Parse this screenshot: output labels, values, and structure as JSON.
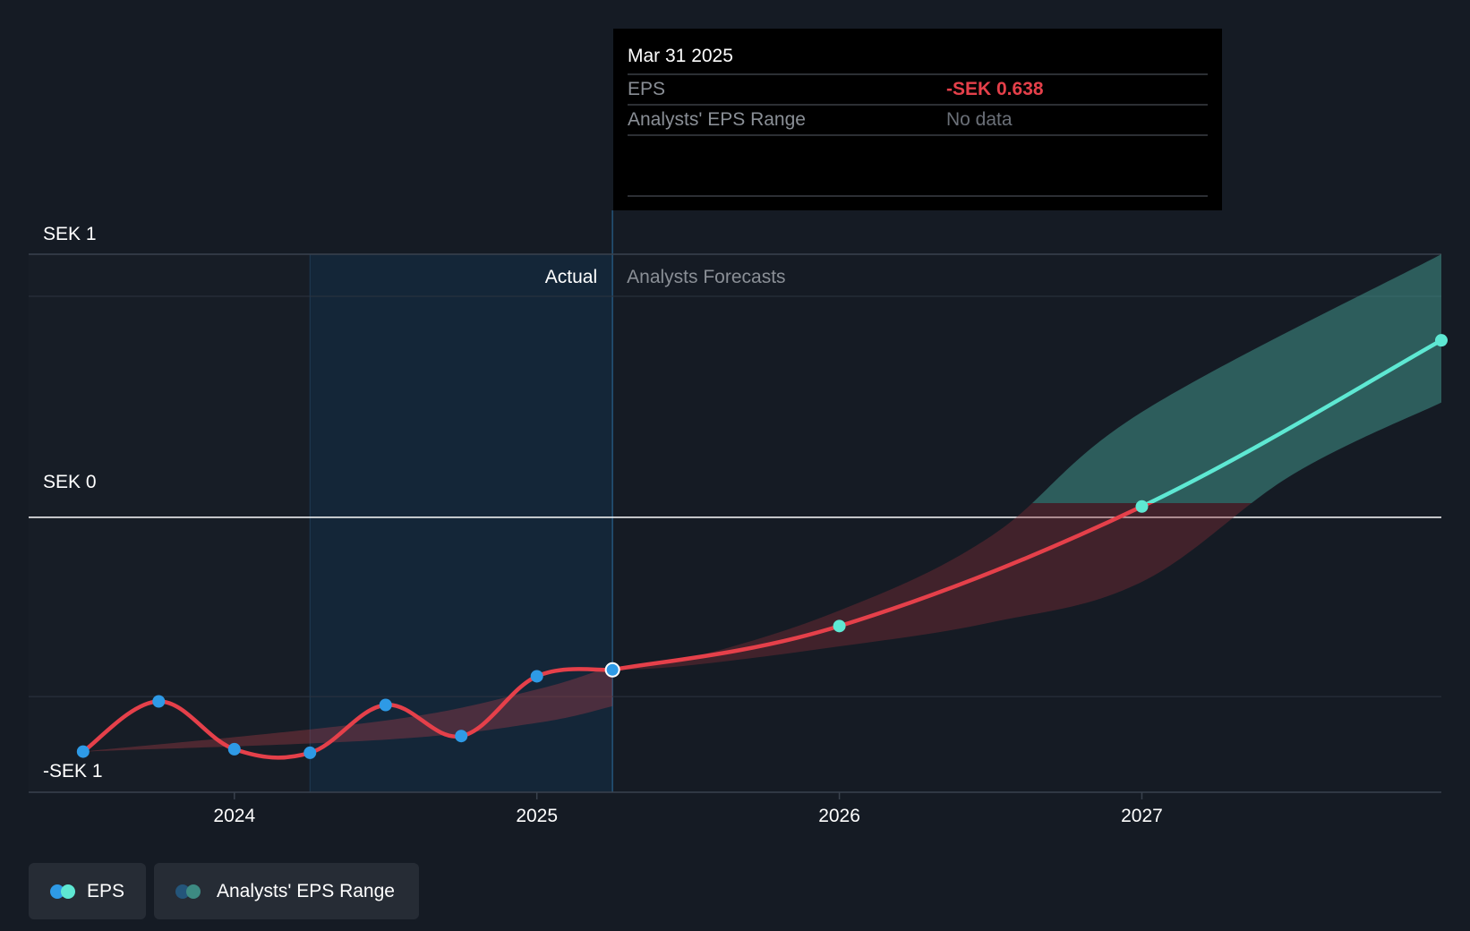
{
  "chart_data": {
    "type": "line",
    "currency_unit": "SEK",
    "y_ticks": [
      {
        "value": 1,
        "label": "SEK 1"
      },
      {
        "value": 0,
        "label": "SEK 0"
      },
      {
        "value": -1,
        "label": "-SEK 1"
      }
    ],
    "x_ticks": [
      {
        "value": 2024.0,
        "label": "2024"
      },
      {
        "value": 2025.0,
        "label": "2025"
      },
      {
        "value": 2026.0,
        "label": "2026"
      },
      {
        "value": 2027.0,
        "label": "2027"
      }
    ],
    "xlim": [
      2023.32,
      2027.99
    ],
    "ylim": [
      -1.15,
      1.1
    ],
    "section_labels": {
      "actual": "Actual",
      "forecast": "Analysts Forecasts"
    },
    "actual_highlight_start": 2024.25,
    "forecast_start": 2025.25,
    "series": [
      {
        "name": "EPS",
        "kind": "actual",
        "color": "#e5404a",
        "marker_color": "#2e9ae6",
        "points": [
          {
            "x": 2023.5,
            "y": -0.98
          },
          {
            "x": 2023.75,
            "y": -0.77
          },
          {
            "x": 2024.0,
            "y": -0.97
          },
          {
            "x": 2024.25,
            "y": -0.985
          },
          {
            "x": 2024.5,
            "y": -0.785
          },
          {
            "x": 2024.75,
            "y": -0.915
          },
          {
            "x": 2025.0,
            "y": -0.665
          },
          {
            "x": 2025.25,
            "y": -0.638
          }
        ]
      },
      {
        "name": "EPS",
        "kind": "forecast",
        "color_negative": "#e5404a",
        "color_positive": "#5ee8d3",
        "points": [
          {
            "x": 2025.25,
            "y": -0.638
          },
          {
            "x": 2026.0,
            "y": -0.455
          },
          {
            "x": 2027.0,
            "y": 0.045
          },
          {
            "x": 2027.99,
            "y": 0.74
          }
        ]
      }
    ],
    "ranges": [
      {
        "name": "Analysts' EPS Range",
        "kind": "historic",
        "color": "#c0404a",
        "upper": [
          {
            "x": 2023.5,
            "y": -0.98
          },
          {
            "x": 2024.5,
            "y": -0.85
          },
          {
            "x": 2025.0,
            "y": -0.72
          },
          {
            "x": 2025.25,
            "y": -0.62
          }
        ],
        "lower": [
          {
            "x": 2023.5,
            "y": -0.98
          },
          {
            "x": 2024.5,
            "y": -0.93
          },
          {
            "x": 2025.0,
            "y": -0.86
          },
          {
            "x": 2025.25,
            "y": -0.79
          }
        ]
      },
      {
        "name": "Analysts' EPS Range",
        "kind": "forecast",
        "color_negative": "#8a3038",
        "color_positive": "#3d8a82",
        "upper": [
          {
            "x": 2025.25,
            "y": -0.63
          },
          {
            "x": 2025.5,
            "y": -0.59
          },
          {
            "x": 2026.0,
            "y": -0.39
          },
          {
            "x": 2026.5,
            "y": -0.08
          },
          {
            "x": 2027.0,
            "y": 0.44
          },
          {
            "x": 2027.99,
            "y": 1.1
          }
        ],
        "lower": [
          {
            "x": 2025.25,
            "y": -0.64
          },
          {
            "x": 2025.5,
            "y": -0.62
          },
          {
            "x": 2026.0,
            "y": -0.54
          },
          {
            "x": 2026.5,
            "y": -0.44
          },
          {
            "x": 2027.0,
            "y": -0.27
          },
          {
            "x": 2027.5,
            "y": 0.18
          },
          {
            "x": 2027.99,
            "y": 0.48
          }
        ]
      }
    ],
    "tooltip": {
      "date": "Mar 31 2025",
      "rows": [
        {
          "label": "EPS",
          "value": "-SEK 0.638",
          "value_color": "#e5404a"
        },
        {
          "label": "Analysts' EPS Range",
          "value": "No data",
          "value_color": "#6b7078"
        }
      ]
    },
    "grid": true
  },
  "legend": [
    {
      "label": "EPS",
      "dot_colors": [
        "#2e9ae6",
        "#5ee8d3"
      ]
    },
    {
      "label": "Analysts' EPS Range",
      "dot_colors": [
        "#24557a",
        "#3d8a82"
      ]
    }
  ],
  "colors": {
    "background": "#151b24",
    "actual_panel": "#142638",
    "tooltip_bg": "#000000",
    "zero_line": "#ffffff",
    "grid_line": "#2c3440",
    "tick_text": "#ffffff",
    "muted_text": "#8a8f96"
  }
}
